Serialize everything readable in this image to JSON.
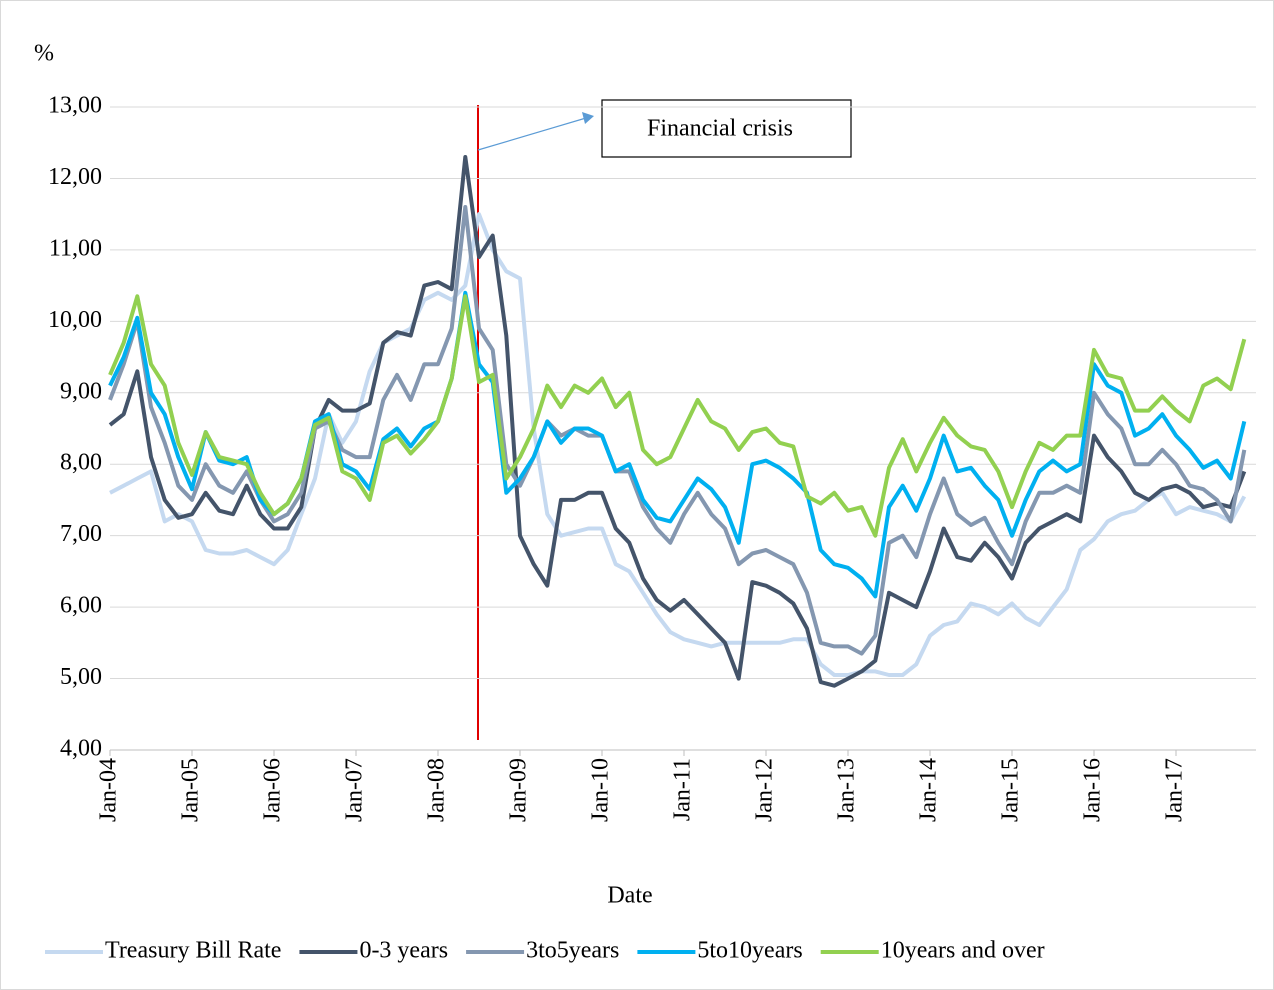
{
  "chart_data": {
    "type": "line",
    "y_unit": "%",
    "x_label": "Date",
    "annotation": "Financial crisis",
    "categories": [
      "Jan-04",
      null,
      null,
      null,
      null,
      null,
      "Jan-05",
      null,
      null,
      null,
      null,
      null,
      "Jan-06",
      null,
      null,
      null,
      null,
      null,
      "Jan-07",
      null,
      null,
      null,
      null,
      null,
      "Jan-08",
      null,
      null,
      null,
      null,
      null,
      "Jan-09",
      null,
      null,
      null,
      null,
      null,
      "Jan-10",
      null,
      null,
      null,
      null,
      null,
      "Jan-11",
      null,
      null,
      null,
      null,
      null,
      "Jan-12",
      null,
      null,
      null,
      null,
      null,
      "Jan-13",
      null,
      null,
      null,
      null,
      null,
      "Jan-14",
      null,
      null,
      null,
      null,
      null,
      "Jan-15",
      null,
      null,
      null,
      null,
      null,
      "Jan-16",
      null,
      null,
      null,
      null,
      null,
      "Jan-17",
      null,
      null,
      null,
      null,
      null
    ],
    "ylim": [
      4,
      13
    ],
    "yticks": [
      {
        "value": 4,
        "label": "4,00"
      },
      {
        "value": 5,
        "label": "5,00"
      },
      {
        "value": 6,
        "label": "6,00"
      },
      {
        "value": 7,
        "label": "7,00"
      },
      {
        "value": 8,
        "label": "8,00"
      },
      {
        "value": 9,
        "label": "9,00"
      },
      {
        "value": 10,
        "label": "10,00"
      },
      {
        "value": 11,
        "label": "11,00"
      },
      {
        "value": 12,
        "label": "12,00"
      },
      {
        "value": 13,
        "label": "13,00"
      }
    ],
    "grid": true,
    "legend": "bottom",
    "series": [
      {
        "name": "Treasury Bill Rate",
        "color": "#c5d9f0",
        "values": [
          7.6,
          7.7,
          7.8,
          7.9,
          7.2,
          7.3,
          7.2,
          6.8,
          6.75,
          6.75,
          6.8,
          6.7,
          6.6,
          6.8,
          7.3,
          7.8,
          8.7,
          8.3,
          8.6,
          9.3,
          9.7,
          9.8,
          9.9,
          10.3,
          10.4,
          10.3,
          10.5,
          11.5,
          11.0,
          10.7,
          10.6,
          8.5,
          7.3,
          7.0,
          7.05,
          7.1,
          7.1,
          6.6,
          6.5,
          6.2,
          5.9,
          5.65,
          5.55,
          5.5,
          5.45,
          5.5,
          5.5,
          5.5,
          5.5,
          5.5,
          5.55,
          5.55,
          5.2,
          5.05,
          5.05,
          5.1,
          5.1,
          5.05,
          5.05,
          5.2,
          5.6,
          5.75,
          5.8,
          6.05,
          6.0,
          5.9,
          6.05,
          5.85,
          5.75,
          6.0,
          6.25,
          6.8,
          6.95,
          7.2,
          7.3,
          7.35,
          7.5,
          7.6,
          7.3,
          7.4,
          7.35,
          7.3,
          7.2,
          7.55
        ]
      },
      {
        "name": "0-3 years",
        "color": "#44546a",
        "values": [
          8.55,
          8.7,
          9.3,
          8.1,
          7.5,
          7.25,
          7.3,
          7.6,
          7.35,
          7.3,
          7.7,
          7.3,
          7.1,
          7.1,
          7.4,
          8.5,
          8.9,
          8.75,
          8.75,
          8.85,
          9.7,
          9.85,
          9.8,
          10.5,
          10.55,
          10.45,
          12.3,
          10.9,
          11.2,
          9.8,
          7.0,
          6.6,
          6.3,
          7.5,
          7.5,
          7.6,
          7.6,
          7.1,
          6.9,
          6.4,
          6.1,
          5.95,
          6.1,
          5.9,
          5.7,
          5.5,
          5.0,
          6.35,
          6.3,
          6.2,
          6.05,
          5.7,
          4.95,
          4.9,
          5.0,
          5.1,
          5.25,
          6.2,
          6.1,
          6.0,
          6.5,
          7.1,
          6.7,
          6.65,
          6.9,
          6.7,
          6.4,
          6.9,
          7.1,
          7.2,
          7.3,
          7.2,
          8.4,
          8.1,
          7.9,
          7.6,
          7.5,
          7.65,
          7.7,
          7.6,
          7.4,
          7.45,
          7.4,
          7.9
        ]
      },
      {
        "name": "3to5years",
        "color": "#8497b0",
        "values": [
          8.9,
          9.4,
          10.0,
          8.8,
          8.3,
          7.7,
          7.5,
          8.0,
          7.7,
          7.6,
          7.9,
          7.5,
          7.2,
          7.3,
          7.6,
          8.5,
          8.6,
          8.2,
          8.1,
          8.1,
          8.9,
          9.25,
          8.9,
          9.4,
          9.4,
          9.9,
          11.6,
          9.9,
          9.6,
          8.0,
          7.7,
          8.1,
          8.6,
          8.4,
          8.5,
          8.4,
          8.4,
          7.9,
          7.9,
          7.4,
          7.1,
          6.9,
          7.3,
          7.6,
          7.3,
          7.1,
          6.6,
          6.75,
          6.8,
          6.7,
          6.6,
          6.2,
          5.5,
          5.45,
          5.45,
          5.35,
          5.6,
          6.9,
          7.0,
          6.7,
          7.3,
          7.8,
          7.3,
          7.15,
          7.25,
          6.9,
          6.6,
          7.2,
          7.6,
          7.6,
          7.7,
          7.6,
          9.0,
          8.7,
          8.5,
          8.0,
          8.0,
          8.2,
          8.0,
          7.7,
          7.65,
          7.5,
          7.2,
          8.2
        ]
      },
      {
        "name": "5to10years",
        "color": "#00b0f0",
        "values": [
          9.1,
          9.5,
          10.05,
          9.0,
          8.7,
          8.1,
          7.65,
          8.45,
          8.05,
          8.0,
          8.1,
          7.5,
          7.3,
          7.45,
          7.8,
          8.6,
          8.7,
          8.0,
          7.9,
          7.65,
          8.35,
          8.5,
          8.25,
          8.5,
          8.6,
          9.2,
          10.4,
          9.4,
          9.15,
          7.6,
          7.8,
          8.1,
          8.6,
          8.3,
          8.5,
          8.5,
          8.4,
          7.9,
          8.0,
          7.5,
          7.25,
          7.2,
          7.5,
          7.8,
          7.65,
          7.4,
          6.9,
          8.0,
          8.05,
          7.95,
          7.8,
          7.6,
          6.8,
          6.6,
          6.55,
          6.4,
          6.15,
          7.4,
          7.7,
          7.35,
          7.8,
          8.4,
          7.9,
          7.95,
          7.7,
          7.5,
          7.0,
          7.5,
          7.9,
          8.05,
          7.9,
          8.0,
          9.4,
          9.1,
          9.0,
          8.4,
          8.5,
          8.7,
          8.4,
          8.2,
          7.95,
          8.05,
          7.8,
          8.6
        ]
      },
      {
        "name": "10years and over",
        "color": "#92d050",
        "values": [
          9.25,
          9.7,
          10.35,
          9.4,
          9.1,
          8.3,
          7.85,
          8.45,
          8.1,
          8.05,
          8.0,
          7.6,
          7.3,
          7.45,
          7.8,
          8.55,
          8.65,
          7.9,
          7.8,
          7.5,
          8.3,
          8.4,
          8.15,
          8.35,
          8.6,
          9.2,
          10.35,
          9.15,
          9.25,
          7.8,
          8.1,
          8.5,
          9.1,
          8.8,
          9.1,
          9.0,
          9.2,
          8.8,
          9.0,
          8.2,
          8.0,
          8.1,
          8.5,
          8.9,
          8.6,
          8.5,
          8.2,
          8.45,
          8.5,
          8.3,
          8.25,
          7.55,
          7.45,
          7.6,
          7.35,
          7.4,
          7.0,
          7.95,
          8.35,
          7.9,
          8.3,
          8.65,
          8.4,
          8.25,
          8.2,
          7.9,
          7.4,
          7.9,
          8.3,
          8.2,
          8.4,
          8.4,
          9.6,
          9.25,
          9.2,
          8.75,
          8.75,
          8.95,
          8.75,
          8.6,
          9.1,
          9.2,
          9.05,
          9.75
        ]
      }
    ]
  }
}
